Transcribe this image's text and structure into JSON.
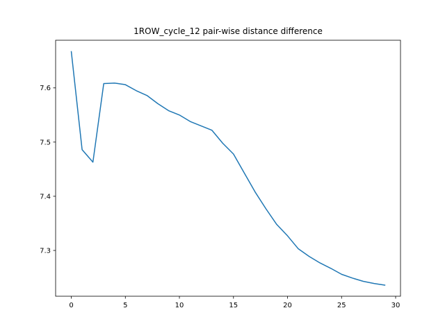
{
  "chart_data": {
    "type": "line",
    "title": "1ROW_cycle_12 pair-wise distance difference",
    "xlabel": "",
    "ylabel": "",
    "xlim": [
      -1.45,
      30.45
    ],
    "ylim": [
      7.2155,
      7.688
    ],
    "x_ticks": [
      0,
      5,
      10,
      15,
      20,
      25,
      30
    ],
    "y_ticks": [
      7.3,
      7.4,
      7.5,
      7.6
    ],
    "x_tick_labels": [
      "0",
      "5",
      "10",
      "15",
      "20",
      "25",
      "30"
    ],
    "y_tick_labels": [
      "7.3",
      "7.4",
      "7.5",
      "7.6"
    ],
    "grid": false,
    "series": [
      {
        "color": "#1f77b4",
        "x": [
          0,
          1,
          2,
          3,
          4,
          5,
          6,
          7,
          8,
          9,
          10,
          11,
          12,
          13,
          14,
          15,
          16,
          17,
          18,
          19,
          20,
          21,
          22,
          23,
          24,
          25,
          26,
          27,
          28,
          29
        ],
        "y": [
          7.667,
          7.486,
          7.463,
          7.608,
          7.609,
          7.606,
          7.595,
          7.586,
          7.571,
          7.558,
          7.55,
          7.538,
          7.53,
          7.522,
          7.498,
          7.478,
          7.443,
          7.408,
          7.377,
          7.348,
          7.327,
          7.303,
          7.289,
          7.277,
          7.267,
          7.256,
          7.249,
          7.243,
          7.239,
          7.236
        ]
      }
    ]
  }
}
